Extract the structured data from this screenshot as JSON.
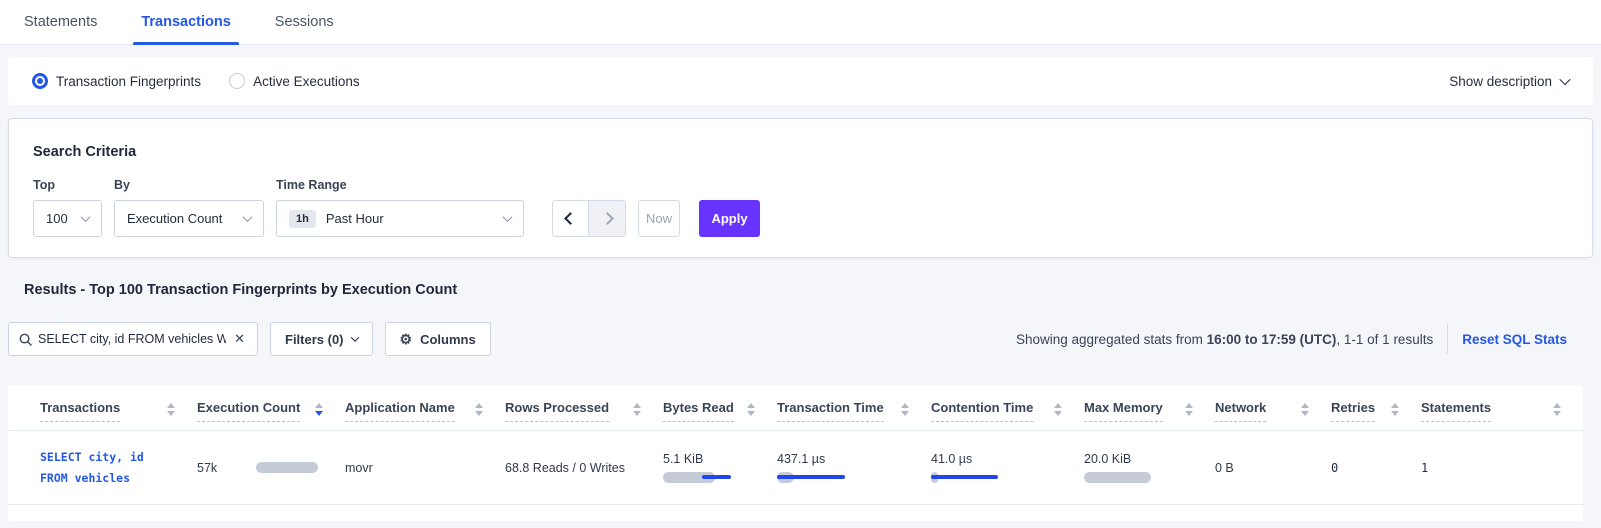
{
  "colors": {
    "accent_blue": "#2458e4",
    "apply_purple": "#6933ff",
    "bar_gray": "#c6cbd8",
    "bar_blue": "#2145ee",
    "page_bg": "#f4f6fa"
  },
  "tabs": {
    "items": [
      {
        "label": "Statements"
      },
      {
        "label": "Transactions"
      },
      {
        "label": "Sessions"
      }
    ],
    "active": "Transactions"
  },
  "view_bar": {
    "options": [
      {
        "label": "Transaction Fingerprints"
      },
      {
        "label": "Active Executions"
      }
    ],
    "selected": "Transaction Fingerprints",
    "show_description": "Show description"
  },
  "search_criteria": {
    "title": "Search Criteria",
    "top_label": "Top",
    "top_value": "100",
    "by_label": "By",
    "by_value": "Execution Count",
    "time_range_label": "Time Range",
    "time_badge": "1h",
    "time_value": "Past Hour",
    "now_label": "Now",
    "apply_label": "Apply"
  },
  "results": {
    "heading": "Results - Top 100 Transaction Fingerprints by Execution Count",
    "search_value": "SELECT city, id FROM vehicles WHE",
    "clear_glyph": "✕",
    "filters_label": "Filters (0)",
    "columns_label": "Columns",
    "gear_glyph": "⚙",
    "stats_prefix": "Showing aggregated stats from ",
    "stats_range": "16:00 to 17:59 (UTC)",
    "stats_suffix": ", 1-1 of 1 results",
    "reset_label": "Reset SQL Stats"
  },
  "table": {
    "columns": [
      {
        "label": "Transactions",
        "sort": "none"
      },
      {
        "label": "Execution Count",
        "sort": "desc"
      },
      {
        "label": "Application Name",
        "sort": "none"
      },
      {
        "label": "Rows Processed",
        "sort": "none"
      },
      {
        "label": "Bytes Read",
        "sort": "none"
      },
      {
        "label": "Transaction Time",
        "sort": "none"
      },
      {
        "label": "Contention Time",
        "sort": "none"
      },
      {
        "label": "Max Memory",
        "sort": "none"
      },
      {
        "label": "Network",
        "sort": "none"
      },
      {
        "label": "Retries",
        "sort": "none"
      },
      {
        "label": "Statements",
        "sort": "none"
      }
    ],
    "row": {
      "transaction_sql_line1": "SELECT city, id",
      "transaction_sql_line2": "FROM vehicles",
      "execution_count": "57k",
      "application_name": "movr",
      "rows_processed": "68.8 Reads / 0 Writes",
      "bytes_read": "5.1 KiB",
      "transaction_time": "437.1 µs",
      "contention_time": "41.0 µs",
      "max_memory": "20.0 KiB",
      "network": "0 B",
      "retries": "0",
      "statements": "1",
      "bars": {
        "execution_count": {
          "gray": [
            0,
            1
          ]
        },
        "bytes_read": {
          "gray": [
            0,
            0.76
          ],
          "blue": [
            0.57,
            1
          ]
        },
        "transaction_time": {
          "gray": [
            0,
            0.25
          ],
          "blue": [
            0,
            1
          ]
        },
        "contention_time": {
          "gray": [
            0,
            0.1
          ],
          "blue": [
            0,
            0.98
          ]
        },
        "max_memory": {
          "gray": [
            0,
            1
          ]
        }
      }
    }
  }
}
